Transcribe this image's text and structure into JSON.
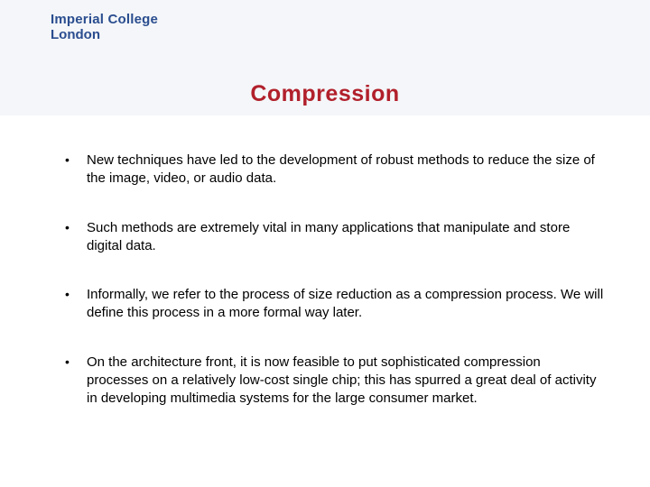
{
  "logo": {
    "line1": "Imperial College",
    "line2": "London"
  },
  "title": "Compression",
  "bullets": [
    "New techniques have led to the development of robust methods to reduce the size of the image, video, or audio data.",
    "Such methods are extremely vital in many applications that manipulate and store digital data.",
    "Informally, we refer to the process of size reduction as a compression process. We will define this process in a more formal way later.",
    "On the architecture front, it is now feasible to put sophisticated compression processes on a relatively low-cost single chip; this has spurred a great deal of activity in developing multimedia systems for the large consumer market."
  ],
  "colors": {
    "header_bg": "#f4f6f9",
    "logo_color": "#2a4d8f",
    "title_color": "#b1202b",
    "text_color": "#000000",
    "page_bg": "#ffffff"
  },
  "typography": {
    "title_fontsize": 25,
    "title_weight": 700,
    "body_fontsize": 15,
    "logo_fontsize": 15
  }
}
